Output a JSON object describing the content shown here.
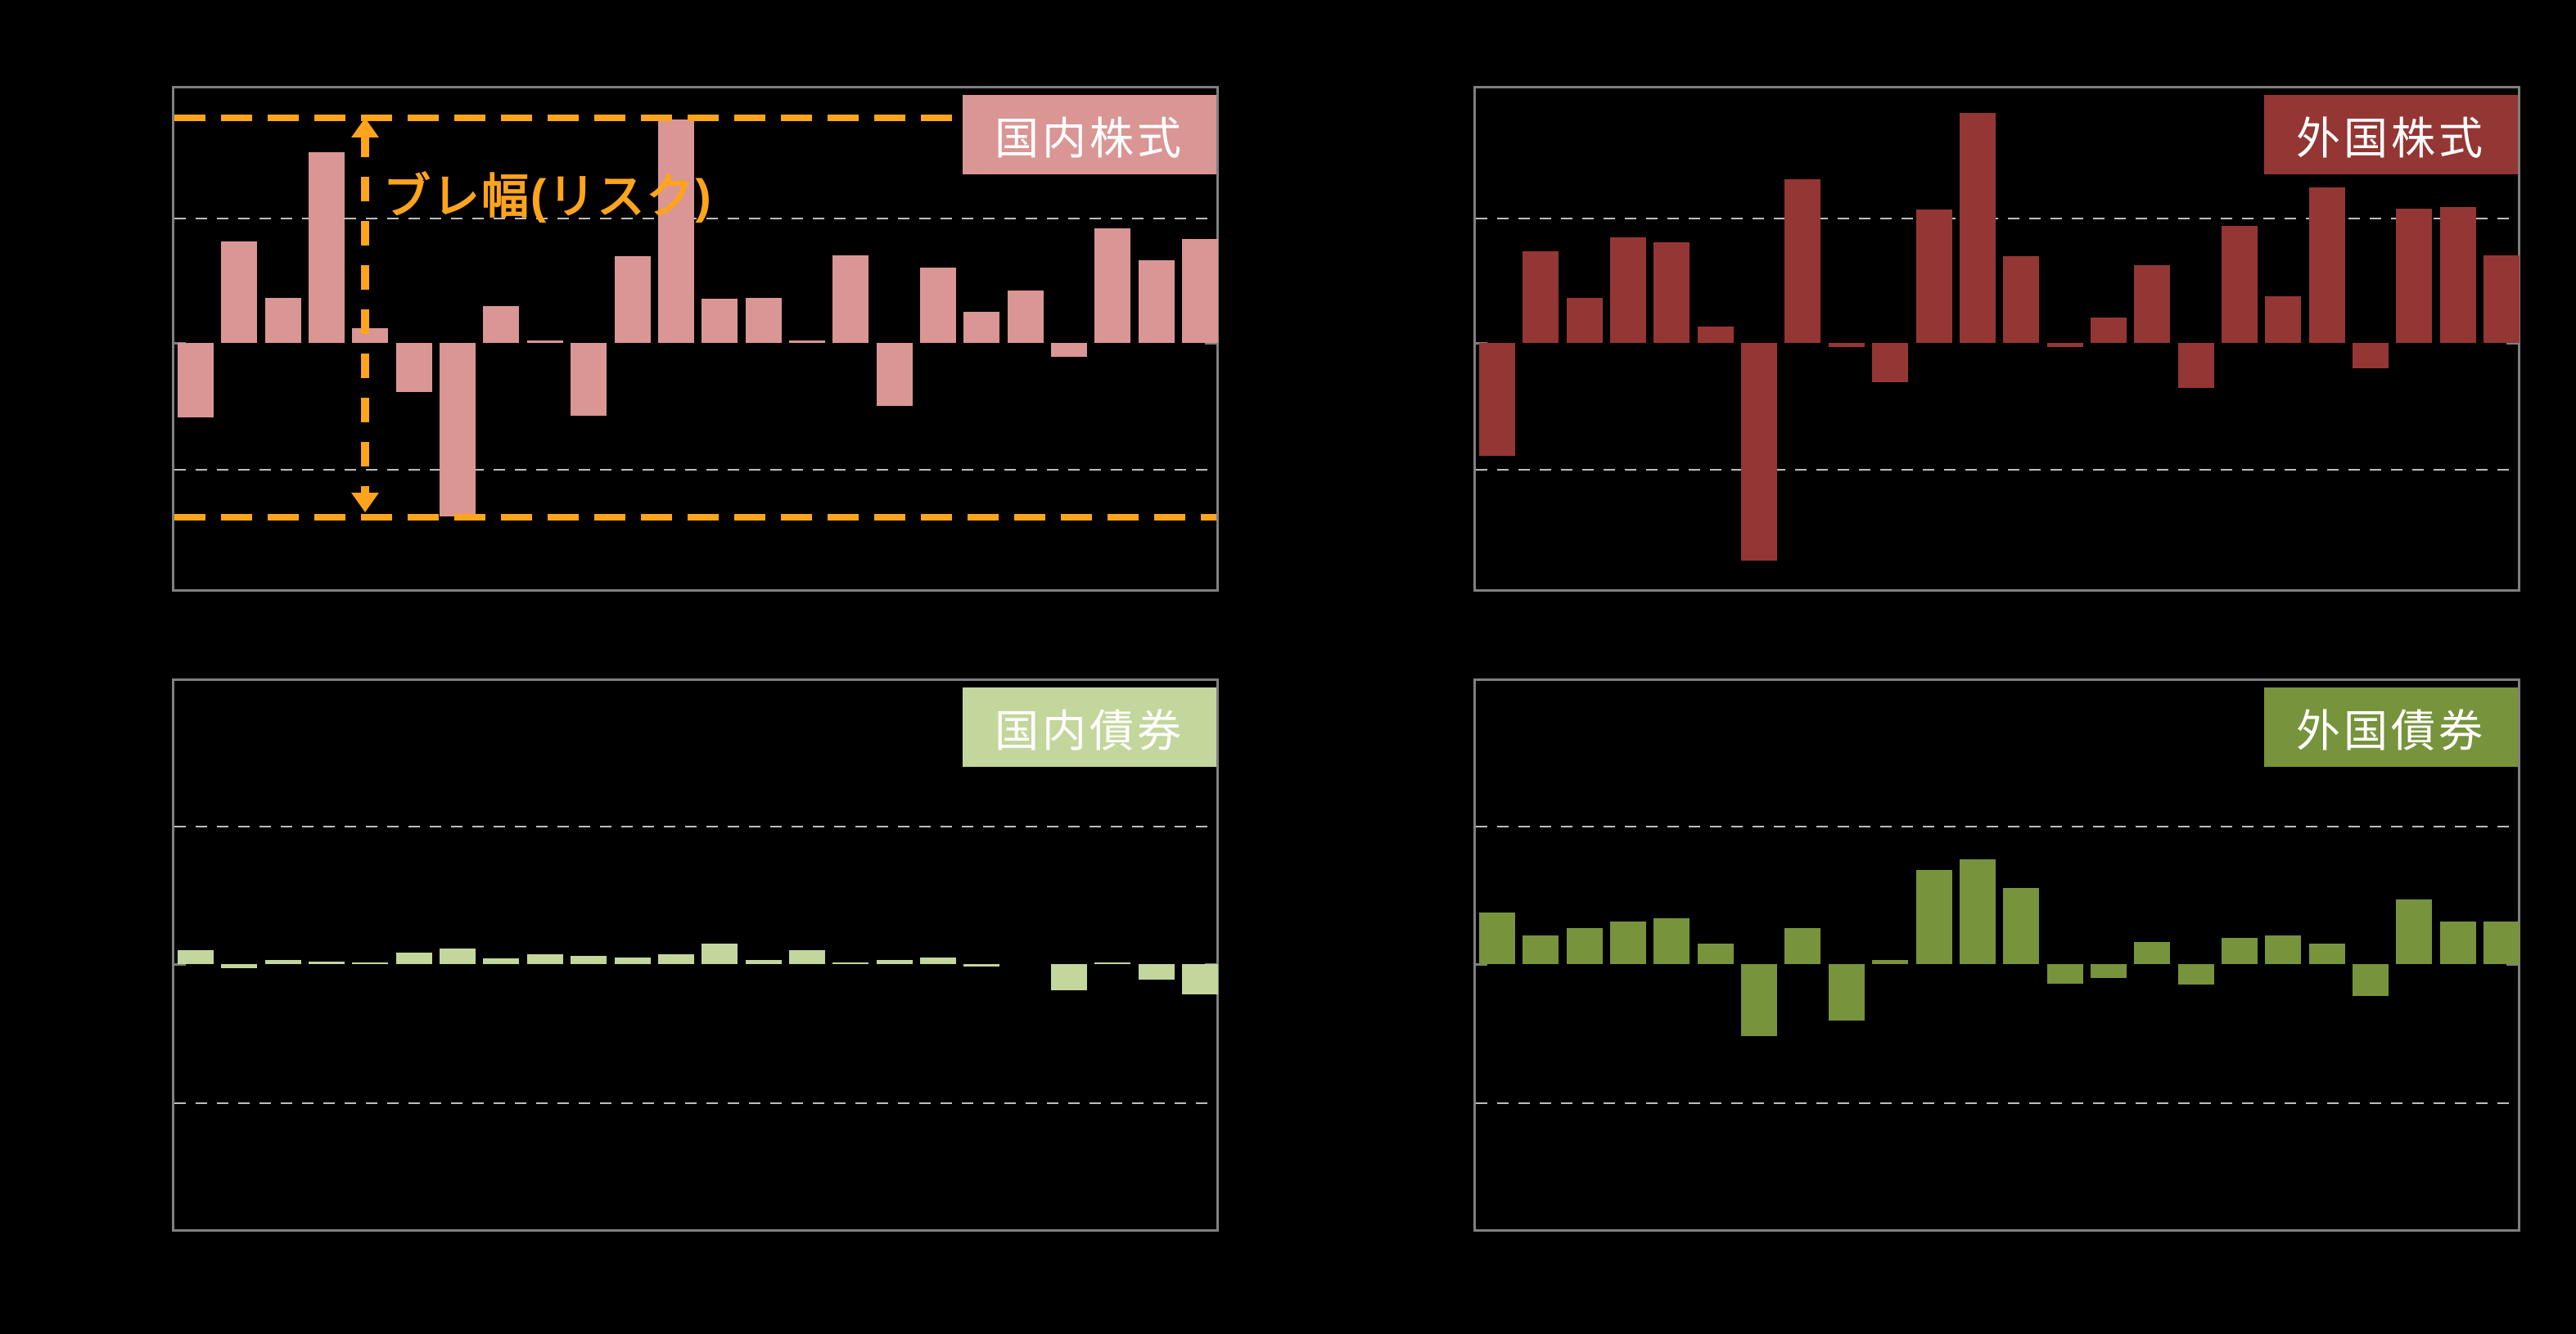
{
  "page": {
    "background": "#000000",
    "border_color": "#7f7f7f",
    "gridline_color": "#bdbdbd",
    "accent_orange": "#ffa41c"
  },
  "chart_data": [
    {
      "id": "domestic-equity",
      "type": "bar",
      "title": "国内株式",
      "bar_color": "#D99694",
      "title_bg": "#D99694",
      "title_color": "#FFFFFF",
      "n_bars": 24,
      "values_unit": "y-gridline intervals (no numeric axis labels shown)",
      "ylim": [
        -2,
        2
      ],
      "grid": "horizontal dashed lines at +1 and -1",
      "values": [
        -0.59,
        0.81,
        0.36,
        1.52,
        0.12,
        -0.39,
        -1.38,
        0.29,
        0.02,
        -0.58,
        0.69,
        1.78,
        0.35,
        0.36,
        0.02,
        0.7,
        -0.5,
        0.6,
        0.25,
        0.42,
        -0.11,
        0.91,
        0.66,
        0.83
      ],
      "annotation": {
        "label": "ブレ幅(リスク)",
        "color": "#ffa41c",
        "range_line_top_units": 1.79,
        "range_line_bottom_units": -1.39,
        "style": "orange dashed horizontal lines at max/min with vertical double-headed dashed arrow"
      }
    },
    {
      "id": "foreign-equity",
      "type": "bar",
      "title": "外国株式",
      "bar_color": "#943634",
      "title_bg": "#943634",
      "title_color": "#FFFFFF",
      "n_bars": 24,
      "values_unit": "y-gridline intervals (no numeric axis labels shown)",
      "ylim": [
        -2,
        2
      ],
      "grid": "horizontal dashed lines at +1 and -1",
      "values": [
        -0.9,
        0.73,
        0.36,
        0.84,
        0.8,
        0.13,
        -1.73,
        1.3,
        -0.03,
        -0.31,
        1.06,
        1.83,
        0.69,
        -0.03,
        0.2,
        0.62,
        -0.36,
        0.93,
        0.37,
        1.24,
        -0.2,
        1.07,
        1.08,
        0.7
      ]
    },
    {
      "id": "domestic-bond",
      "type": "bar",
      "title": "国内債券",
      "bar_color": "#C3D69B",
      "title_bg": "#C3D69B",
      "title_color": "#FFFFFF",
      "n_bars": 24,
      "values_unit": "y-gridline intervals (no numeric axis labels shown)",
      "ylim": [
        -2,
        2
      ],
      "grid": "horizontal dashed lines at +1 and -1",
      "values": [
        0.1,
        -0.03,
        0.03,
        0.02,
        0.01,
        0.08,
        0.11,
        0.04,
        0.07,
        0.06,
        0.05,
        0.07,
        0.15,
        0.03,
        0.1,
        0.01,
        0.03,
        0.05,
        -0.02,
        0.0,
        -0.19,
        0.01,
        -0.11,
        -0.22
      ]
    },
    {
      "id": "foreign-bond",
      "type": "bar",
      "title": "外国債券",
      "bar_color": "#77933C",
      "title_bg": "#77933C",
      "title_color": "#FFFFFF",
      "n_bars": 24,
      "values_unit": "y-gridline intervals (no numeric axis labels shown)",
      "ylim": [
        -2,
        2
      ],
      "grid": "horizontal dashed lines at +1 and -1",
      "values": [
        0.37,
        0.21,
        0.26,
        0.31,
        0.33,
        0.15,
        -0.52,
        0.26,
        -0.41,
        0.03,
        0.68,
        0.76,
        0.55,
        -0.14,
        -0.1,
        0.16,
        -0.15,
        0.19,
        0.21,
        0.15,
        -0.23,
        0.47,
        0.31,
        0.31
      ]
    }
  ]
}
